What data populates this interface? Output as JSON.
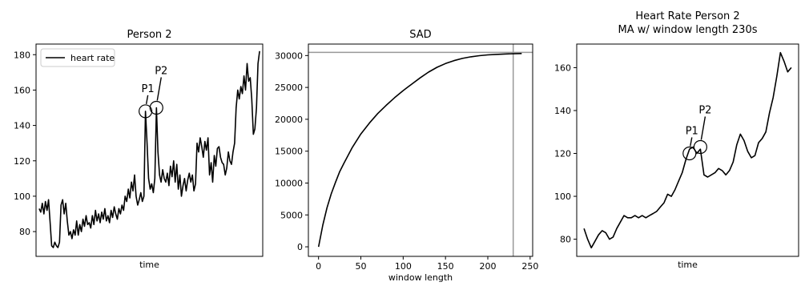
{
  "chart_data": [
    {
      "type": "line",
      "title": "Person 2",
      "xlabel": "time",
      "ylabel": "",
      "ylim": [
        66,
        186
      ],
      "yticks": [
        80,
        100,
        120,
        140,
        160,
        180
      ],
      "legend": {
        "position": "top-left",
        "entries": [
          "heart rate"
        ]
      },
      "grid": false,
      "series": [
        {
          "name": "heart rate",
          "color": "#000000",
          "values": [
            93,
            91,
            96,
            90,
            97,
            92,
            98,
            85,
            72,
            71,
            74,
            72,
            71,
            74,
            95,
            98,
            90,
            96,
            86,
            78,
            80,
            76,
            81,
            78,
            86,
            78,
            84,
            80,
            87,
            83,
            89,
            84,
            85,
            82,
            89,
            84,
            92,
            86,
            90,
            85,
            91,
            87,
            93,
            86,
            89,
            85,
            92,
            88,
            94,
            90,
            87,
            93,
            90,
            95,
            92,
            100,
            97,
            104,
            99,
            108,
            103,
            112,
            100,
            95,
            98,
            102,
            97,
            100,
            148,
            130,
            110,
            104,
            107,
            102,
            110,
            150,
            125,
            112,
            108,
            115,
            110,
            108,
            113,
            106,
            117,
            111,
            120,
            108,
            118,
            104,
            112,
            100,
            106,
            110,
            103,
            109,
            113,
            108,
            112,
            103,
            107,
            130,
            125,
            133,
            128,
            122,
            131,
            126,
            133,
            112,
            119,
            108,
            123,
            117,
            127,
            128,
            122,
            119,
            118,
            112,
            116,
            125,
            120,
            118,
            125,
            130,
            150,
            160,
            155,
            162,
            158,
            168,
            160,
            175,
            165,
            167,
            155,
            135,
            138,
            150,
            175,
            182
          ]
        }
      ],
      "annotations": [
        {
          "label": "P1",
          "index": 68,
          "y": 148
        },
        {
          "label": "P2",
          "index": 75,
          "y": 150
        }
      ]
    },
    {
      "type": "line",
      "title": "SAD",
      "xlabel": "window length",
      "ylabel": "",
      "xlim": [
        -12,
        253
      ],
      "ylim": [
        -1500,
        31800
      ],
      "xticks": [
        0,
        50,
        100,
        150,
        200,
        250
      ],
      "yticks": [
        0,
        5000,
        10000,
        15000,
        20000,
        25000,
        30000
      ],
      "grid": false,
      "vline_x": 230,
      "hline_y": 30500,
      "series": [
        {
          "name": "",
          "color": "#000000",
          "x": [
            0,
            5,
            10,
            15,
            20,
            25,
            30,
            40,
            50,
            60,
            70,
            80,
            90,
            100,
            110,
            120,
            130,
            140,
            150,
            160,
            170,
            180,
            190,
            200,
            210,
            220,
            230,
            240
          ],
          "values": [
            0,
            3400,
            6100,
            8300,
            10100,
            11800,
            13100,
            15600,
            17700,
            19400,
            20900,
            22200,
            23400,
            24500,
            25500,
            26500,
            27400,
            28150,
            28750,
            29200,
            29550,
            29800,
            29980,
            30100,
            30180,
            30240,
            30280,
            30320
          ]
        }
      ]
    },
    {
      "type": "line",
      "title": "Heart Rate Person 2",
      "subtitle": "MA w/ window length 230s",
      "xlabel": "time",
      "ylabel": "",
      "ylim": [
        72,
        171
      ],
      "yticks": [
        80,
        100,
        120,
        140,
        160
      ],
      "grid": false,
      "series": [
        {
          "name": "",
          "color": "#000000",
          "values": [
            85,
            80,
            76,
            79,
            82,
            84,
            83,
            80,
            81,
            85,
            88,
            91,
            90,
            90,
            91,
            90,
            91,
            90,
            91,
            92,
            93,
            95,
            97,
            101,
            100,
            103,
            107,
            111,
            117,
            122,
            123,
            120,
            122,
            110,
            109,
            110,
            111,
            113,
            112,
            110,
            112,
            116,
            124,
            129,
            126,
            121,
            118,
            119,
            125,
            127,
            130,
            139,
            146,
            156,
            167,
            163,
            158,
            160
          ]
        }
      ],
      "annotations": [
        {
          "label": "P1",
          "index": 29,
          "y": 120
        },
        {
          "label": "P2",
          "index": 32,
          "y": 123
        }
      ]
    }
  ]
}
